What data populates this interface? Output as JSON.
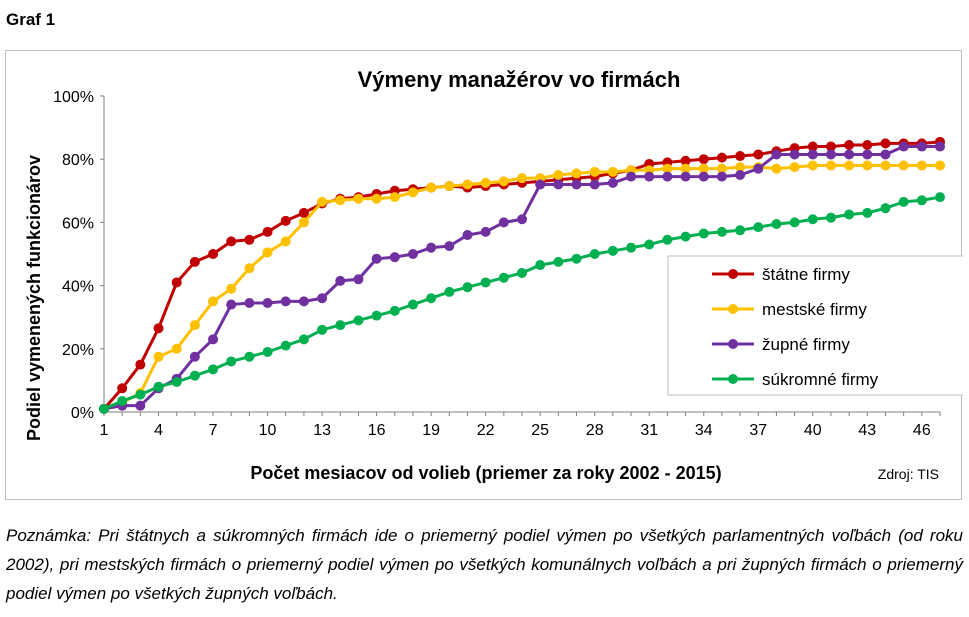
{
  "figure_label": "Graf 1",
  "source": "Zdroj: TIS",
  "note": "Poznámka: Pri štátnych a súkromných firmách ide o priemerný podiel výmen po všetkých parlamentných voľbách (od roku 2002), pri mestských firmách o priemerný podiel výmen po všetkých komunálnych voľbách a pri župných firmách o priemerný podiel výmen po všetkých župných voľbách.",
  "chart_data": {
    "type": "line",
    "title": "Výmeny manažérov vo firmách",
    "xlabel": "Počet mesiacov od volieb (priemer za roky 2002 - 2015)",
    "ylabel": "Podiel vymenených funkcionárov",
    "xlim": [
      1,
      47
    ],
    "ylim": [
      0,
      100
    ],
    "x_ticks": [
      1,
      4,
      7,
      10,
      13,
      16,
      19,
      22,
      25,
      28,
      31,
      34,
      37,
      40,
      43,
      46
    ],
    "y_ticks": [
      0,
      20,
      40,
      60,
      80,
      100
    ],
    "y_tick_labels": [
      "0%",
      "20%",
      "40%",
      "60%",
      "80%",
      "100%"
    ],
    "grid": false,
    "legend_position": "bottom-right",
    "x": [
      1,
      2,
      3,
      4,
      5,
      6,
      7,
      8,
      9,
      10,
      11,
      12,
      13,
      14,
      15,
      16,
      17,
      18,
      19,
      20,
      21,
      22,
      23,
      24,
      25,
      26,
      27,
      28,
      29,
      30,
      31,
      32,
      33,
      34,
      35,
      36,
      37,
      38,
      39,
      40,
      41,
      42,
      43,
      44,
      45,
      46,
      47
    ],
    "series": [
      {
        "name": "štátne firmy",
        "color": "#c00000",
        "values": [
          1,
          7.5,
          15,
          26.5,
          41,
          47.5,
          50,
          54,
          54.5,
          57,
          60.5,
          63,
          66,
          67.5,
          68,
          69,
          70,
          70.5,
          71,
          71.5,
          71,
          71.5,
          72,
          72.5,
          73,
          73.5,
          74,
          74.5,
          75.5,
          76.5,
          78.5,
          79,
          79.5,
          80,
          80.5,
          81,
          81.5,
          82.5,
          83.5,
          84,
          84,
          84.5,
          84.5,
          85,
          85,
          85,
          85.5
        ]
      },
      {
        "name": "mestské firmy",
        "color": "#ffc000",
        "values": [
          1,
          3,
          6,
          17.5,
          20,
          27.5,
          35,
          39,
          45.5,
          50.5,
          54,
          60,
          66.5,
          67,
          67.5,
          67.5,
          68,
          69.5,
          71,
          71.5,
          72,
          72.5,
          73,
          74,
          74,
          75,
          75.5,
          76,
          76,
          76.5,
          76.5,
          77,
          77,
          77,
          77,
          77.5,
          77.5,
          77,
          77.5,
          78,
          78,
          78,
          78,
          78,
          78,
          78,
          78
        ]
      },
      {
        "name": "župné firmy",
        "color": "#7030a0",
        "values": [
          1,
          2,
          2,
          7.5,
          10.5,
          17.5,
          23,
          34,
          34.5,
          34.5,
          35,
          35,
          36,
          41.5,
          42,
          48.5,
          49,
          50,
          52,
          52.5,
          56,
          57,
          60,
          61,
          72,
          72,
          72,
          72,
          72.5,
          74.5,
          74.5,
          74.5,
          74.5,
          74.5,
          74.5,
          75,
          77,
          81.5,
          81.5,
          81.5,
          81.5,
          81.5,
          81.5,
          81.5,
          84,
          84,
          84
        ]
      },
      {
        "name": "súkromné firmy",
        "color": "#00b050",
        "values": [
          1,
          3.5,
          5.5,
          8,
          9.5,
          11.5,
          13.5,
          16,
          17.5,
          19,
          21,
          23,
          26,
          27.5,
          29,
          30.5,
          32,
          34,
          36,
          38,
          39.5,
          41,
          42.5,
          44,
          46.5,
          47.5,
          48.5,
          50,
          51,
          52,
          53,
          54.5,
          55.5,
          56.5,
          57,
          57.5,
          58.5,
          59.5,
          60,
          61,
          61.5,
          62.5,
          63,
          64.5,
          66.5,
          67,
          68
        ]
      }
    ]
  }
}
